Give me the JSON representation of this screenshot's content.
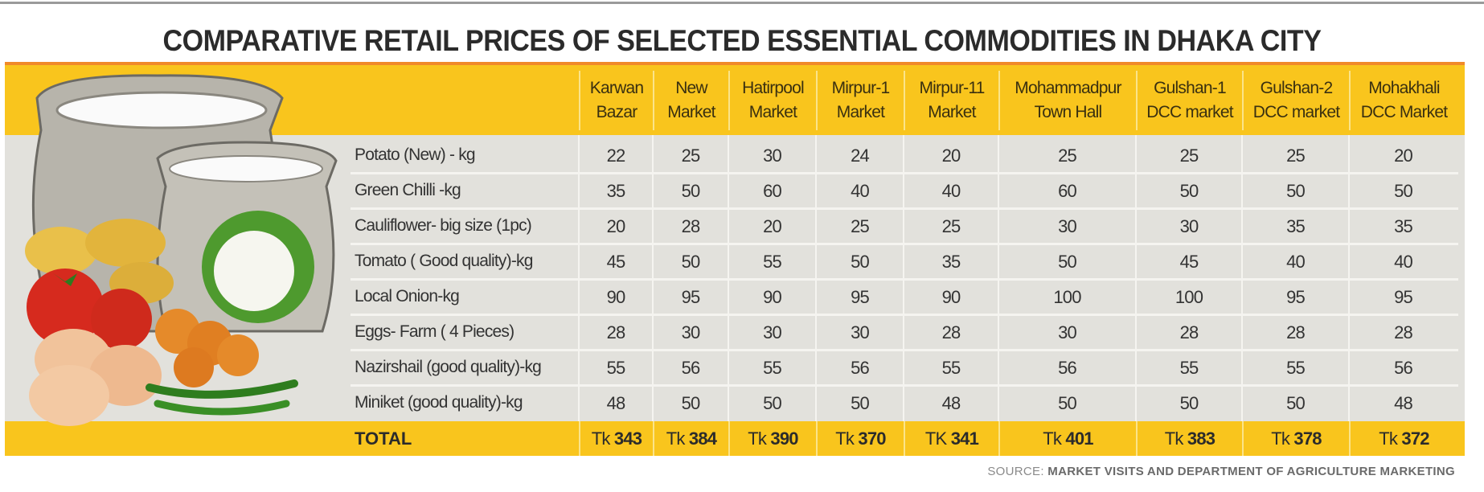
{
  "title": "COMPARATIVE RETAIL  PRICES OF SELECTED ESSENTIAL COMMODITIES IN DHAKA CITY",
  "markets": [
    [
      "Karwan",
      "Bazar"
    ],
    [
      "New",
      "Market"
    ],
    [
      "Hatirpool",
      "Market"
    ],
    [
      "Mirpur-1",
      "Market"
    ],
    [
      "Mirpur-11",
      "Market"
    ],
    [
      "Mohammadpur",
      "Town Hall"
    ],
    [
      "Gulshan-1",
      "DCC market"
    ],
    [
      "Gulshan-2",
      "DCC market"
    ],
    [
      "Mohakhali",
      "DCC Market"
    ]
  ],
  "items": [
    {
      "name": "Potato (New) - kg",
      "prices": [
        "22",
        "25",
        "30",
        "24",
        "20",
        "25",
        "25",
        "25",
        "20"
      ]
    },
    {
      "name": "Green Chilli -kg",
      "prices": [
        "35",
        "50",
        "60",
        "40",
        "40",
        "60",
        "50",
        "50",
        "50"
      ]
    },
    {
      "name": "Cauliflower- big size (1pc)",
      "prices": [
        "20",
        "28",
        "20",
        "25",
        "25",
        "30",
        "30",
        "35",
        "35"
      ]
    },
    {
      "name": "Tomato ( Good quality)-kg",
      "prices": [
        "45",
        "50",
        "55",
        "50",
        "35",
        "50",
        "45",
        "40",
        "40"
      ]
    },
    {
      "name": "Local Onion-kg",
      "prices": [
        "90",
        "95",
        "90",
        "95",
        "90",
        "100",
        "100",
        "95",
        "95"
      ]
    },
    {
      "name": "Eggs- Farm ( 4 Pieces)",
      "prices": [
        "28",
        "30",
        "30",
        "30",
        "28",
        "30",
        "28",
        "28",
        "28"
      ]
    },
    {
      "name": "Nazirshail (good quality)-kg",
      "prices": [
        "55",
        "56",
        "55",
        "56",
        "55",
        "56",
        "55",
        "55",
        "56"
      ]
    },
    {
      "name": "Miniket (good quality)-kg",
      "prices": [
        "48",
        "50",
        "50",
        "50",
        "48",
        "50",
        "50",
        "50",
        "48"
      ]
    }
  ],
  "total": {
    "label": "TOTAL",
    "values": [
      {
        "prefix": "Tk",
        "amount": "343"
      },
      {
        "prefix": "Tk",
        "amount": "384"
      },
      {
        "prefix": "Tk",
        "amount": "390"
      },
      {
        "prefix": "Tk",
        "amount": "370"
      },
      {
        "prefix": "TK",
        "amount": "341"
      },
      {
        "prefix": "Tk",
        "amount": "401"
      },
      {
        "prefix": "Tk",
        "amount": "383"
      },
      {
        "prefix": "Tk",
        "amount": "378"
      },
      {
        "prefix": "Tk",
        "amount": "372"
      }
    ]
  },
  "source": {
    "label": "SOURCE:",
    "text": "MARKET VISITS AND DEPARTMENT OF AGRICULTURE MARKETING"
  },
  "colors": {
    "yellow": "#f9c51d",
    "gray": "#e2e1dc",
    "orange": "#f08a2a"
  }
}
